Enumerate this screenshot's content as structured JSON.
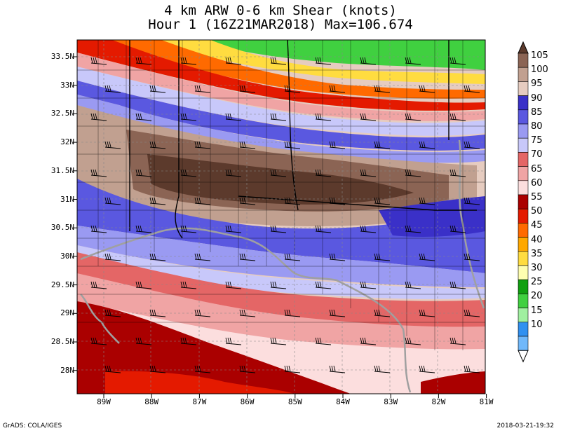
{
  "title": {
    "line1": "4 km ARW 0-6 km Shear (knots)",
    "line2": "Hour 1 (16Z21MAR2018) Max=106.674"
  },
  "axes": {
    "lat_labels": [
      "33.5N",
      "33N",
      "32.5N",
      "32N",
      "31.5N",
      "31N",
      "30.5N",
      "30N",
      "29.5N",
      "29N",
      "28.5N",
      "28N"
    ],
    "lon_labels": [
      "89W",
      "88W",
      "87W",
      "86W",
      "85W",
      "84W",
      "83W",
      "82W",
      "81W"
    ]
  },
  "colorbar": {
    "labels": [
      "105",
      "100",
      "95",
      "90",
      "85",
      "80",
      "75",
      "70",
      "65",
      "60",
      "55",
      "50",
      "45",
      "40",
      "35",
      "30",
      "25",
      "20",
      "15",
      "10"
    ],
    "colors": [
      "#5c3a2c",
      "#8b6454",
      "#c1a090",
      "#e6ccc0",
      "#3a30c8",
      "#5a58e0",
      "#9a9af2",
      "#c8c8fa",
      "#e46666",
      "#f0a4a4",
      "#fcdede",
      "#aa0000",
      "#e41a00",
      "#ff6a00",
      "#ffa800",
      "#ffdc40",
      "#fefeb0",
      "#10a010",
      "#40d040",
      "#a0f0a0",
      "#3090f0",
      "#70b8fa",
      "#b0d8fc"
    ]
  },
  "footer": {
    "credit": "GrADS: COLA/IGES",
    "timestamp": "2018-03-21-19:32"
  }
}
